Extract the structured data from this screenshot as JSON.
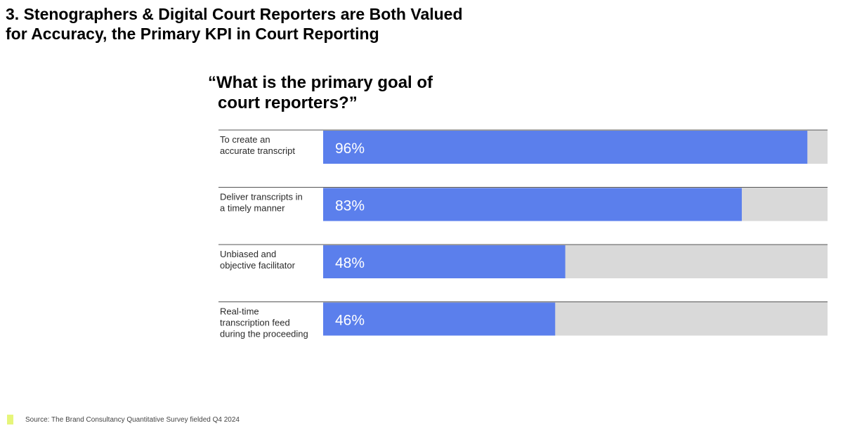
{
  "title": {
    "line1": "3. Stenographers & Digital Court Reporters are Both Valued",
    "line2": "for Accuracy, the Primary KPI in Court Reporting"
  },
  "question": {
    "line1": "“What is the primary goal of",
    "line2": "court reporters?”"
  },
  "chart_data": {
    "type": "bar",
    "orientation": "horizontal",
    "categories": [
      [
        "To create an",
        "accurate transcript"
      ],
      [
        "Deliver transcripts in",
        "a timely manner"
      ],
      [
        "Unbiased and",
        "objective facilitator"
      ],
      [
        "Real-time",
        "transcription feed",
        "during the proceeding"
      ]
    ],
    "values": [
      96,
      83,
      48,
      46
    ],
    "value_labels": [
      "96%",
      "83%",
      "48%",
      "46%"
    ],
    "xlim": [
      0,
      100
    ],
    "grid": false,
    "legend": "none"
  },
  "colors": {
    "bar": "#5b7fec",
    "track": "#d9d9d9",
    "divider": "#555555",
    "source_marker": "#e6f57a"
  },
  "source": "Source: The Brand Consultancy Quantitative Survey fielded Q4 2024"
}
